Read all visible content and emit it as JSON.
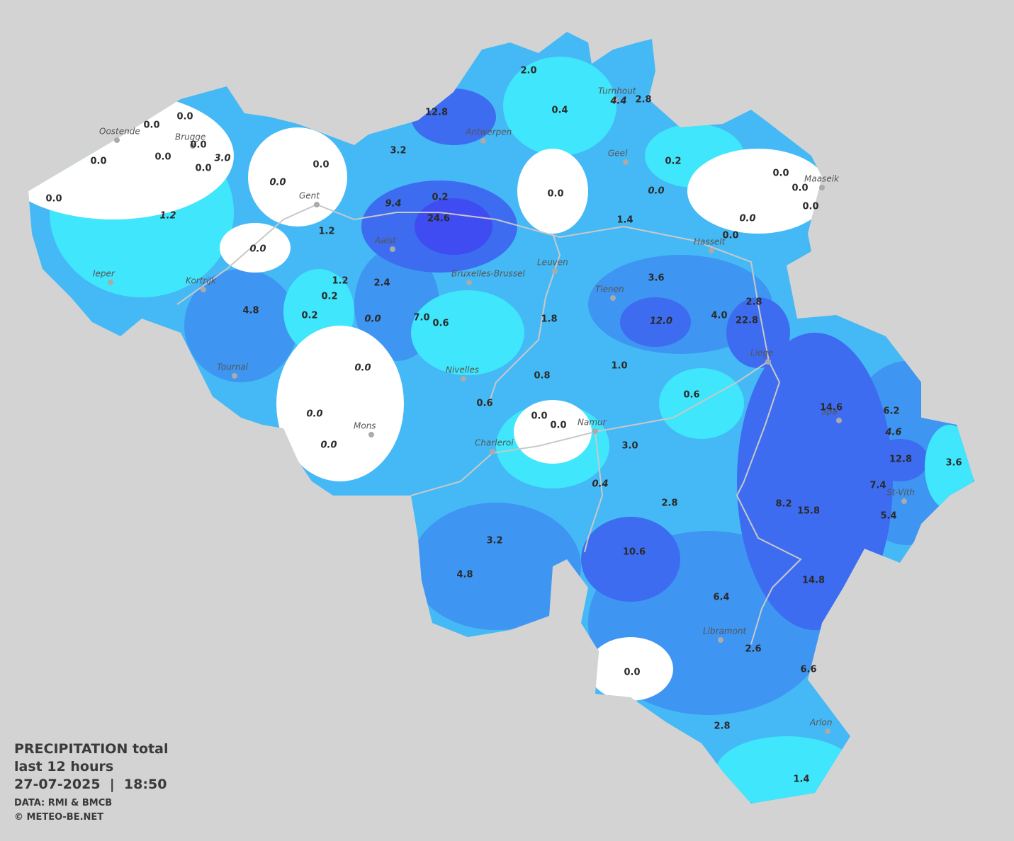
{
  "legend": {
    "title": "PRECIPITATION total",
    "period": "last 12 hours",
    "datetime": "27-07-2025  |  18:50",
    "source": "DATA: RMI & BMCB",
    "copyright": "© METEO-BE.NET"
  },
  "cities": [
    "Oostende",
    "Brugge",
    "Antwerpen",
    "Turnhout",
    "Geel",
    "Maaseik",
    "Gent",
    "Aalst",
    "Hasselt",
    "Ieper",
    "Kortrijk",
    "Bruxelles-Brussel",
    "Leuven",
    "Tienen",
    "Liege",
    "Tournai",
    "Nivelles",
    "Spa",
    "Mons",
    "Namur",
    "Charleroi",
    "St-Vith",
    "Libramont",
    "Arlon"
  ],
  "readings": [
    {
      "value": "0.0",
      "italic": false
    },
    {
      "value": "0.0",
      "italic": false
    },
    {
      "value": "0.0",
      "italic": false
    },
    {
      "value": "0.0",
      "italic": false
    },
    {
      "value": "0.0",
      "italic": false
    },
    {
      "value": "0.0",
      "italic": false
    },
    {
      "value": "3.0",
      "italic": true
    },
    {
      "value": "0.0",
      "italic": false
    },
    {
      "value": "1.2",
      "italic": true
    },
    {
      "value": "0.0",
      "italic": true
    },
    {
      "value": "0.0",
      "italic": false
    },
    {
      "value": "0.0",
      "italic": true
    },
    {
      "value": "1.2",
      "italic": false
    },
    {
      "value": "9.4",
      "italic": true
    },
    {
      "value": "0.2",
      "italic": false
    },
    {
      "value": "24.6",
      "italic": false
    },
    {
      "value": "12.8",
      "italic": false
    },
    {
      "value": "3.2",
      "italic": false
    },
    {
      "value": "2.0",
      "italic": false
    },
    {
      "value": "0.4",
      "italic": false
    },
    {
      "value": "4.4",
      "italic": true
    },
    {
      "value": "2.8",
      "italic": false
    },
    {
      "value": "0.2",
      "italic": false
    },
    {
      "value": "0.0",
      "italic": false
    },
    {
      "value": "0.0",
      "italic": true
    },
    {
      "value": "0.0",
      "italic": false
    },
    {
      "value": "0.0",
      "italic": false
    },
    {
      "value": "0.0",
      "italic": false
    },
    {
      "value": "0.0",
      "italic": true
    },
    {
      "value": "0.0",
      "italic": false
    },
    {
      "value": "1.4",
      "italic": false
    },
    {
      "value": "1.2",
      "italic": false
    },
    {
      "value": "2.4",
      "italic": false
    },
    {
      "value": "0.2",
      "italic": false
    },
    {
      "value": "4.8",
      "italic": false
    },
    {
      "value": "0.2",
      "italic": false
    },
    {
      "value": "0.0",
      "italic": true
    },
    {
      "value": "7.0",
      "italic": false
    },
    {
      "value": "0.6",
      "italic": false
    },
    {
      "value": "1.8",
      "italic": false
    },
    {
      "value": "3.6",
      "italic": false
    },
    {
      "value": "12.0",
      "italic": true
    },
    {
      "value": "4.0",
      "italic": false
    },
    {
      "value": "22.8",
      "italic": false
    },
    {
      "value": "2.8",
      "italic": false
    },
    {
      "value": "0.0",
      "italic": true
    },
    {
      "value": "1.0",
      "italic": false
    },
    {
      "value": "0.8",
      "italic": false
    },
    {
      "value": "0.6",
      "italic": false
    },
    {
      "value": "0.6",
      "italic": false
    },
    {
      "value": "0.0",
      "italic": true
    },
    {
      "value": "0.0",
      "italic": true
    },
    {
      "value": "0.0",
      "italic": false
    },
    {
      "value": "0.0",
      "italic": false
    },
    {
      "value": "3.0",
      "italic": false
    },
    {
      "value": "0.4",
      "italic": true
    },
    {
      "value": "14.6",
      "italic": false
    },
    {
      "value": "6.2",
      "italic": false
    },
    {
      "value": "4.6",
      "italic": true
    },
    {
      "value": "12.8",
      "italic": false
    },
    {
      "value": "3.6",
      "italic": false
    },
    {
      "value": "7.4",
      "italic": false
    },
    {
      "value": "5.4",
      "italic": false
    },
    {
      "value": "8.2",
      "italic": false
    },
    {
      "value": "15.8",
      "italic": false
    },
    {
      "value": "2.8",
      "italic": false
    },
    {
      "value": "3.2",
      "italic": false
    },
    {
      "value": "4.8",
      "italic": false
    },
    {
      "value": "10.6",
      "italic": false
    },
    {
      "value": "14.8",
      "italic": false
    },
    {
      "value": "6.4",
      "italic": false
    },
    {
      "value": "2.6",
      "italic": false
    },
    {
      "value": "6.6",
      "italic": false
    },
    {
      "value": "0.0",
      "italic": false
    },
    {
      "value": "2.8",
      "italic": false
    },
    {
      "value": "1.4",
      "italic": false
    }
  ]
}
